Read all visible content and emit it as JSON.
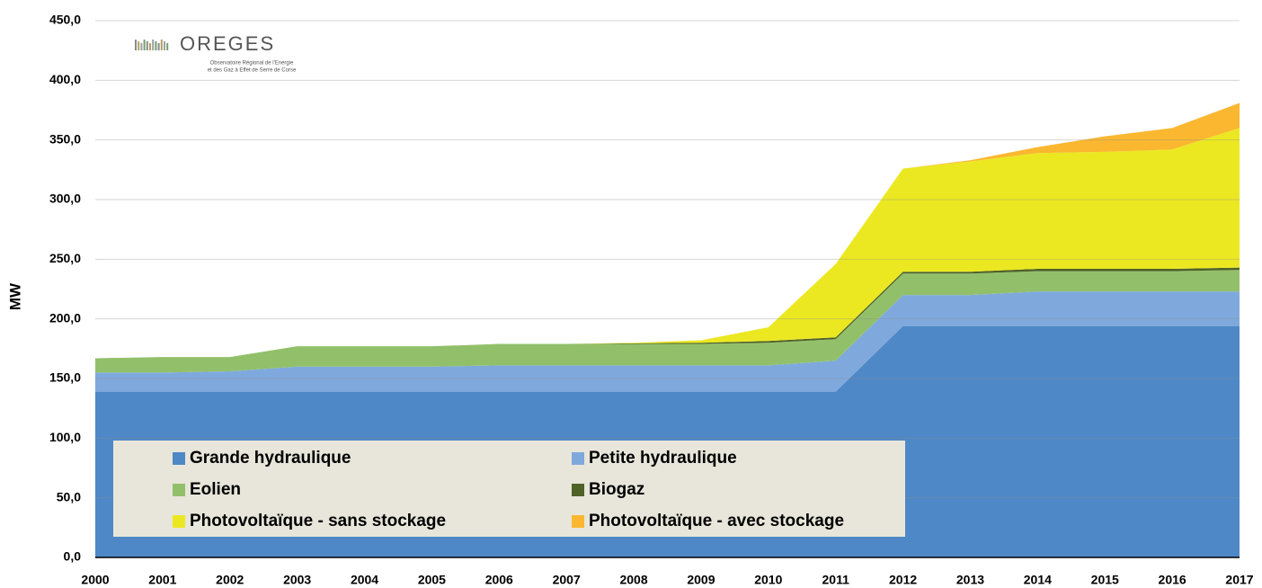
{
  "chart_data": {
    "type": "stacked_area",
    "y_label": "MW",
    "logo": {
      "name": "OREGES",
      "line1": "Observatoire Régional de l'Energie",
      "line2": "et des Gaz à Effet de Serre de Corse"
    },
    "categories": [
      "2000",
      "2001",
      "2002",
      "2003",
      "2004",
      "2005",
      "2006",
      "2007",
      "2008",
      "2009",
      "2010",
      "2011",
      "2012",
      "2013",
      "2014",
      "2015",
      "2016",
      "2017"
    ],
    "series": [
      {
        "name": "Grande hydraulique",
        "color": "#4f88c6",
        "values": [
          139,
          139,
          139,
          139,
          139,
          139,
          139,
          139,
          139,
          139,
          139,
          139,
          194,
          194,
          194,
          194,
          194,
          194
        ]
      },
      {
        "name": "Petite hydraulique",
        "color": "#7fa9dd",
        "values": [
          16,
          16,
          17,
          21,
          21,
          21,
          22,
          22,
          22,
          22,
          22,
          26,
          26,
          26,
          29,
          29,
          29,
          29
        ]
      },
      {
        "name": "Eolien",
        "color": "#92c06a",
        "values": [
          12,
          13,
          12,
          17,
          17,
          17,
          18,
          18,
          18,
          18,
          19,
          18,
          18,
          18,
          17,
          17,
          17,
          18
        ]
      },
      {
        "name": "Biogaz",
        "color": "#4f6228",
        "values": [
          0,
          0,
          0,
          0,
          0,
          0,
          0,
          0,
          0.5,
          1,
          1.5,
          1.5,
          1.5,
          1.5,
          2,
          2,
          2,
          2
        ]
      },
      {
        "name": "Photovoltaïque - sans stockage",
        "color": "#ebe822",
        "values": [
          0,
          0,
          0,
          0,
          0,
          0,
          0,
          0,
          0.5,
          2,
          11.5,
          61.5,
          86.5,
          92.5,
          97,
          98,
          100,
          117
        ]
      },
      {
        "name": "Photovoltaïque - avec stockage",
        "color": "#fbb72f",
        "values": [
          0,
          0,
          0,
          0,
          0,
          0,
          0,
          0,
          0,
          0,
          0,
          0,
          0,
          1,
          5,
          13,
          18,
          21
        ]
      }
    ],
    "ylim": [
      0,
      450
    ],
    "yticks": [
      {
        "value": 0,
        "label": "0,0"
      },
      {
        "value": 50,
        "label": "50,0"
      },
      {
        "value": 100,
        "label": "100,0"
      },
      {
        "value": 150,
        "label": "150,0"
      },
      {
        "value": 200,
        "label": "200,0"
      },
      {
        "value": 250,
        "label": "250,0"
      },
      {
        "value": 300,
        "label": "300,0"
      },
      {
        "value": 350,
        "label": "350,0"
      },
      {
        "value": 400,
        "label": "400,0"
      },
      {
        "value": 450,
        "label": "450,0"
      }
    ],
    "grid": true,
    "legend": "lower left"
  }
}
